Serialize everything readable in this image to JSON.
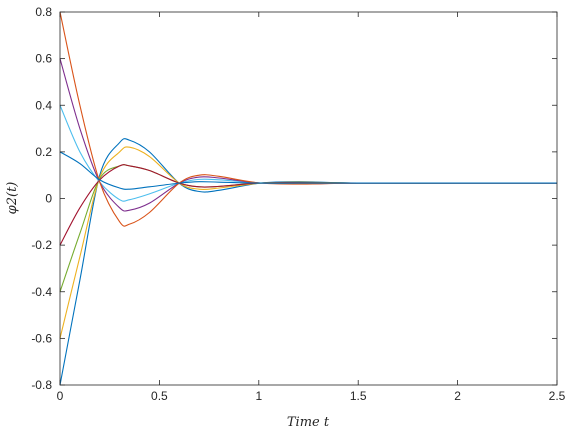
{
  "chart_data": {
    "type": "line",
    "xlabel": "Time t",
    "ylabel": "φ2(t)",
    "xlim": [
      0,
      2.5
    ],
    "ylim": [
      -0.8,
      0.8
    ],
    "xticks": [
      0,
      0.5,
      1,
      1.5,
      2,
      2.5
    ],
    "xtick_labels": [
      "0",
      "0.5",
      "1",
      "1.5",
      "2",
      "2.5"
    ],
    "yticks": [
      -0.8,
      -0.6,
      -0.4,
      -0.2,
      0,
      0.2,
      0.4,
      0.6,
      0.8
    ],
    "ytick_labels": [
      "-0.8",
      "-0.6",
      "-0.4",
      "-0.2",
      "0",
      "0.2",
      "0.4",
      "0.6",
      "0.8"
    ],
    "grid": false,
    "legend": false,
    "series": [
      {
        "color": "#0072BD",
        "x": [
          0,
          0.1,
          0.2,
          0.3,
          0.35,
          0.45,
          0.6,
          0.7,
          0.8,
          1.0,
          1.2,
          1.5,
          2.0,
          2.5
        ],
        "y": [
          -0.8,
          -0.35,
          0.1,
          0.24,
          0.25,
          0.2,
          0.065,
          0.03,
          0.035,
          0.065,
          0.072,
          0.066,
          0.066,
          0.066
        ]
      },
      {
        "color": "#EDB120",
        "x": [
          0,
          0.1,
          0.2,
          0.3,
          0.35,
          0.45,
          0.6,
          0.7,
          0.8,
          1.0,
          1.2,
          1.5,
          2.0,
          2.5
        ],
        "y": [
          -0.6,
          -0.25,
          0.09,
          0.2,
          0.22,
          0.18,
          0.066,
          0.04,
          0.045,
          0.065,
          0.07,
          0.066,
          0.066,
          0.066
        ]
      },
      {
        "color": "#77AC30",
        "x": [
          0,
          0.1,
          0.2,
          0.3,
          0.35,
          0.45,
          0.6,
          0.7,
          0.8,
          1.0,
          1.2,
          1.5,
          2.0,
          2.5
        ],
        "y": [
          -0.4,
          -0.15,
          0.085,
          0.14,
          0.14,
          0.12,
          0.066,
          0.05,
          0.052,
          0.066,
          0.069,
          0.066,
          0.066,
          0.066
        ]
      },
      {
        "color": "#A2142F",
        "x": [
          0,
          0.1,
          0.2,
          0.3,
          0.35,
          0.45,
          0.6,
          0.7,
          0.8,
          1.0,
          1.2,
          1.5,
          2.0,
          2.5
        ],
        "y": [
          -0.2,
          -0.04,
          0.08,
          0.14,
          0.14,
          0.12,
          0.066,
          0.05,
          0.052,
          0.066,
          0.068,
          0.066,
          0.066,
          0.066
        ]
      },
      {
        "color": "#4DBEEE",
        "x": [
          0,
          0.1,
          0.2,
          0.3,
          0.35,
          0.45,
          0.6,
          0.7,
          0.8,
          1.0,
          1.2,
          1.5,
          2.0,
          2.5
        ],
        "y": [
          0.4,
          0.2,
          0.07,
          -0.005,
          -0.005,
          0.02,
          0.066,
          0.082,
          0.08,
          0.067,
          0.064,
          0.066,
          0.066,
          0.066
        ]
      },
      {
        "color": "#7E2F8E",
        "x": [
          0,
          0.1,
          0.2,
          0.3,
          0.35,
          0.45,
          0.6,
          0.7,
          0.8,
          1.0,
          1.2,
          1.5,
          2.0,
          2.5
        ],
        "y": [
          0.6,
          0.3,
          0.07,
          -0.04,
          -0.05,
          -0.02,
          0.066,
          0.092,
          0.088,
          0.067,
          0.063,
          0.066,
          0.066,
          0.066
        ]
      },
      {
        "color": "#D95319",
        "x": [
          0,
          0.1,
          0.2,
          0.3,
          0.35,
          0.45,
          0.6,
          0.7,
          0.8,
          1.0,
          1.2,
          1.5,
          2.0,
          2.5
        ],
        "y": [
          0.8,
          0.4,
          0.07,
          -0.1,
          -0.11,
          -0.06,
          0.066,
          0.1,
          0.095,
          0.067,
          0.062,
          0.066,
          0.066,
          0.066
        ]
      },
      {
        "color": "#0072BD",
        "x": [
          0,
          0.1,
          0.2,
          0.3,
          0.35,
          0.45,
          0.6,
          0.7,
          0.8,
          1.0,
          1.2,
          1.5,
          2.0,
          2.5
        ],
        "y": [
          0.2,
          0.15,
          0.08,
          0.045,
          0.04,
          0.05,
          0.066,
          0.072,
          0.07,
          0.066,
          0.066,
          0.066,
          0.066,
          0.066
        ]
      }
    ]
  }
}
